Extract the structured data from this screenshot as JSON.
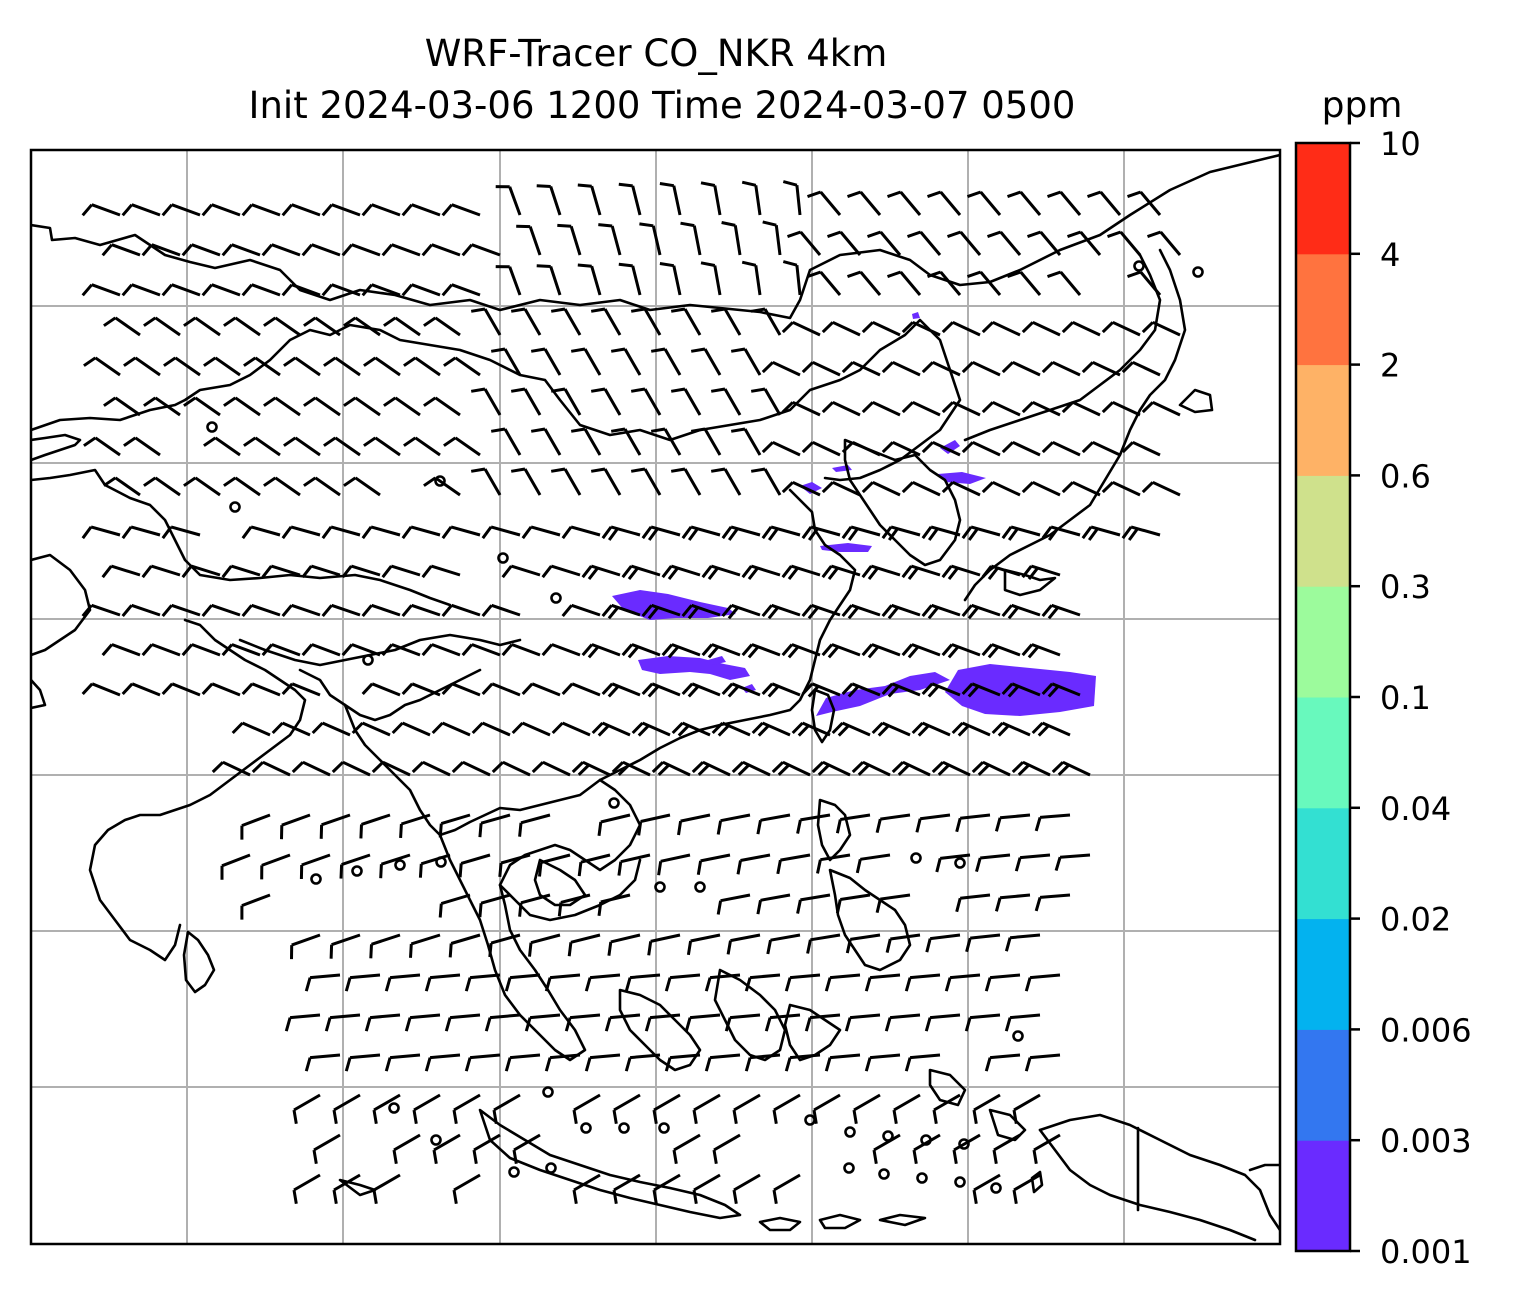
{
  "title": {
    "line1": "WRF-Tracer CO_NKR 4km",
    "line2": "Init 2024-03-06 1200 Time 2024-03-07 0500"
  },
  "colorbar": {
    "unit": "ppm",
    "ticks": [
      "0.001",
      "0.003",
      "0.006",
      "0.02",
      "0.04",
      "0.1",
      "0.3",
      "0.6",
      "2",
      "4",
      "10"
    ],
    "colors": [
      "#6a2bff",
      "#3377f0",
      "#03b2ef",
      "#33e0d2",
      "#68f9bd",
      "#9cfb9c",
      "#cfe18c",
      "#feb266",
      "#ff733f",
      "#ff2c17"
    ]
  },
  "icons": {
    "wind_barb": "wind-barb-icon",
    "calm": "calm-wind-circle-icon"
  }
}
